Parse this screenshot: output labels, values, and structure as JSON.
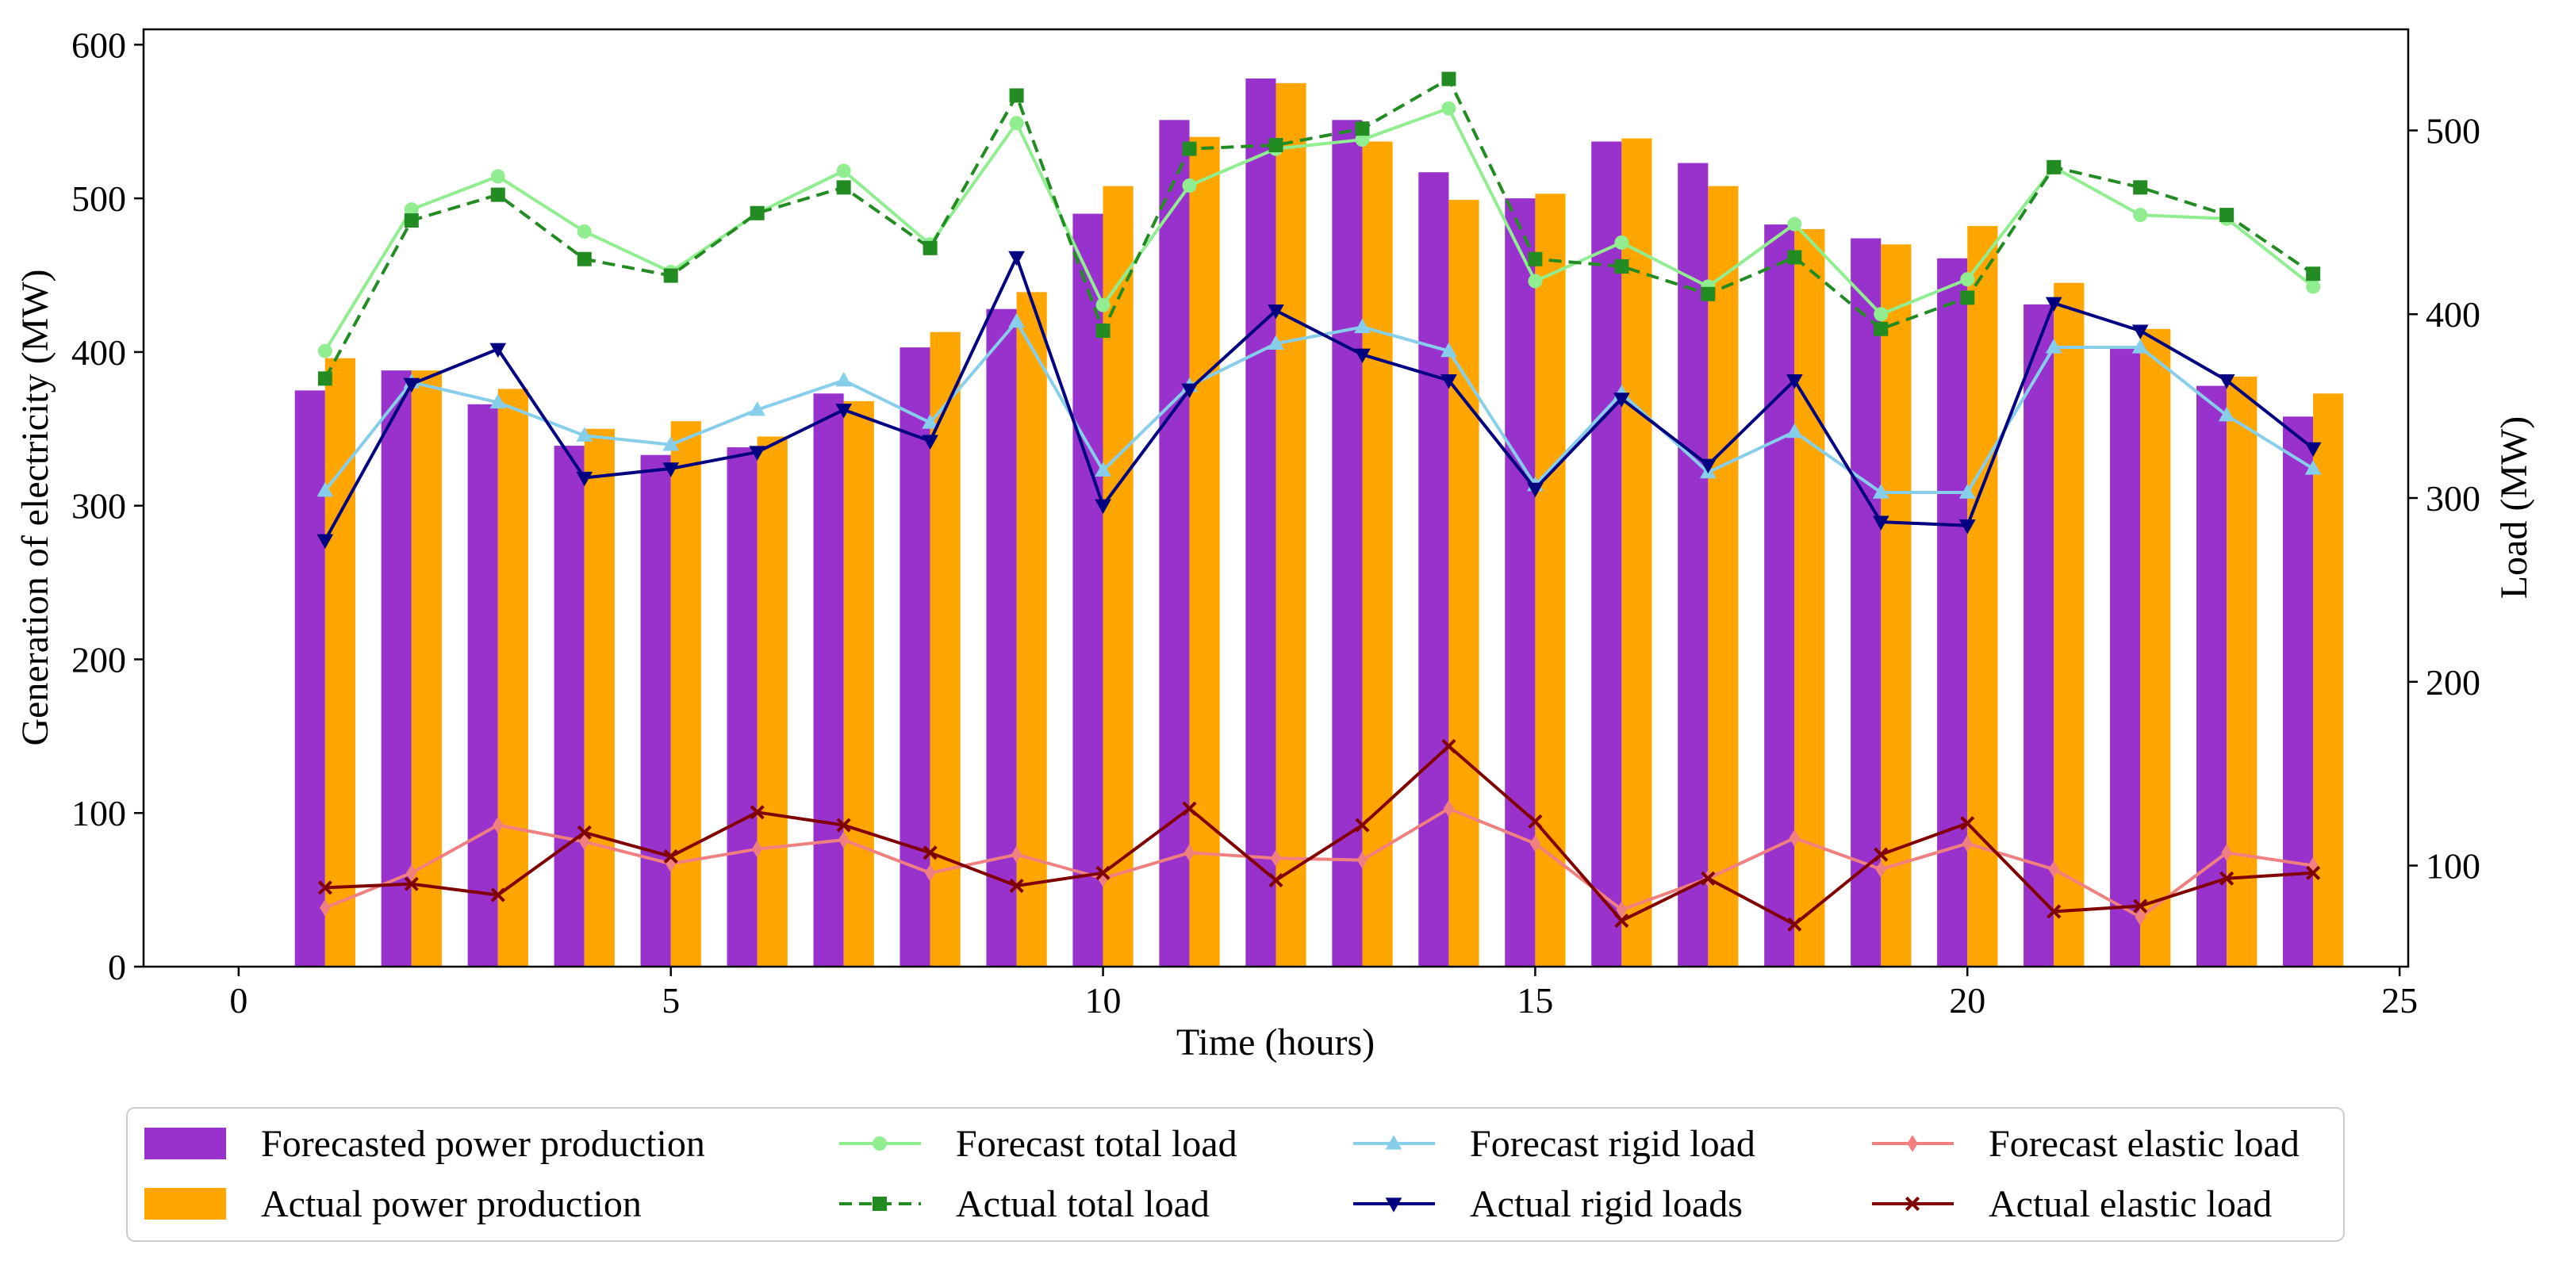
{
  "chart_data": {
    "type": "bar",
    "xlabel": "Time (hours)",
    "ylabel": "Generation of electricity (MW)",
    "y2label": "Load (MW)",
    "xlim": [
      -1.1,
      25.1
    ],
    "ylim": [
      0,
      610
    ],
    "y2lim": [
      45,
      555
    ],
    "x_ticks": [
      0,
      5,
      10,
      15,
      20,
      25
    ],
    "y_ticks": [
      0,
      100,
      200,
      300,
      400,
      500,
      600
    ],
    "y2_ticks": [
      100,
      200,
      300,
      400,
      500
    ],
    "x": [
      1,
      2,
      3,
      4,
      5,
      6,
      7,
      8,
      9,
      10,
      11,
      12,
      13,
      14,
      15,
      16,
      17,
      18,
      19,
      20,
      21,
      22,
      23,
      24
    ],
    "bar_series": [
      {
        "name": "Forecasted power production",
        "color": "#9932CC",
        "values": [
          375,
          388,
          366,
          339,
          333,
          338,
          373,
          403,
          428,
          490,
          551,
          578,
          551,
          517,
          500,
          537,
          523,
          483,
          474,
          461,
          431,
          402,
          378,
          358
        ]
      },
      {
        "name": "Actual power production",
        "color": "#FFA500",
        "values": [
          396,
          388,
          376,
          350,
          355,
          345,
          368,
          413,
          439,
          508,
          540,
          575,
          537,
          499,
          503,
          539,
          508,
          480,
          470,
          482,
          445,
          415,
          384,
          373
        ]
      }
    ],
    "line_series": [
      {
        "name": "Forecast total load",
        "color": "#90EE90",
        "marker": "circle",
        "dash": false,
        "values": [
          380,
          457,
          475,
          445,
          423,
          455,
          478,
          438,
          504,
          405,
          470,
          490,
          495,
          512,
          418,
          439,
          415,
          449,
          400,
          419,
          480,
          454,
          452,
          415
        ]
      },
      {
        "name": "Actual total load",
        "color": "#228B22",
        "marker": "square",
        "dash": true,
        "values": [
          365,
          451,
          465,
          430,
          421,
          455,
          469,
          436,
          519,
          391,
          490,
          492,
          501,
          528,
          430,
          426,
          411,
          431,
          392,
          409,
          480,
          469,
          454,
          422
        ]
      },
      {
        "name": "Forecast rigid load",
        "color": "#87CEEB",
        "marker": "triangle-up",
        "dash": false,
        "values": [
          304,
          363,
          352,
          334,
          329,
          348,
          364,
          341,
          396,
          315,
          361,
          384,
          393,
          380,
          307,
          357,
          314,
          336,
          303,
          303,
          382,
          382,
          345,
          316
        ]
      },
      {
        "name": "Actual rigid loads",
        "color": "#000080",
        "marker": "triangle-down",
        "dash": false,
        "values": [
          277,
          362,
          381,
          311,
          316,
          325,
          348,
          331,
          431,
          296,
          359,
          402,
          378,
          364,
          305,
          354,
          318,
          364,
          287,
          285,
          406,
          391,
          364,
          327
        ]
      },
      {
        "name": "Forecast elastic load",
        "color": "#F08080",
        "marker": "diamond",
        "dash": false,
        "values": [
          77,
          96,
          122,
          113,
          101,
          109,
          114,
          96,
          106,
          93,
          107,
          104,
          103,
          131,
          112,
          76,
          93,
          115,
          98,
          112,
          98,
          72,
          107,
          100
        ]
      },
      {
        "name": "Actual elastic load",
        "color": "#800000",
        "marker": "x",
        "dash": false,
        "values": [
          88,
          90,
          84,
          118,
          105,
          129,
          122,
          107,
          89,
          96,
          131,
          92,
          122,
          165,
          124,
          70,
          93,
          68,
          106,
          123,
          75,
          78,
          93,
          96
        ]
      }
    ],
    "legend_position": "bottom"
  }
}
